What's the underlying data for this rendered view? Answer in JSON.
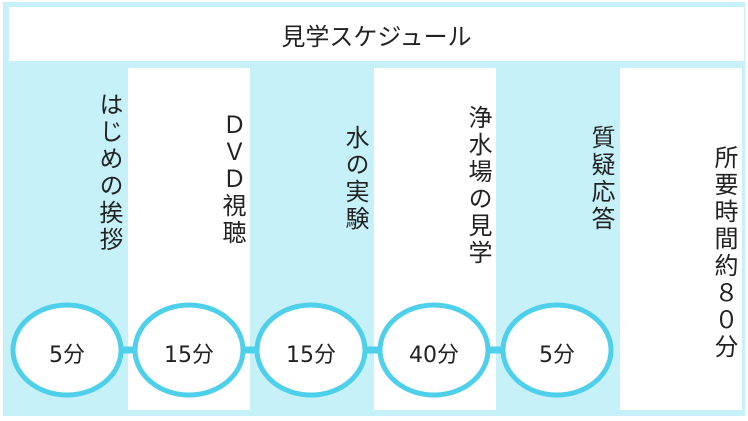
{
  "title": "見学スケジュール",
  "steps": [
    {
      "label": "はじめの挨拶",
      "duration": "5分"
    },
    {
      "label": "ＤＶＤ視聴",
      "duration": "15分"
    },
    {
      "label": "水の実験",
      "duration": "15分"
    },
    {
      "label": "浄水場の見学",
      "duration": "40分"
    },
    {
      "label": "質疑応答",
      "duration": "5分"
    }
  ],
  "total": "所要時間約８０分",
  "colors": {
    "background": "#c6f1f9",
    "circle_stroke": "#4fd0ea",
    "panel": "#ffffff"
  }
}
